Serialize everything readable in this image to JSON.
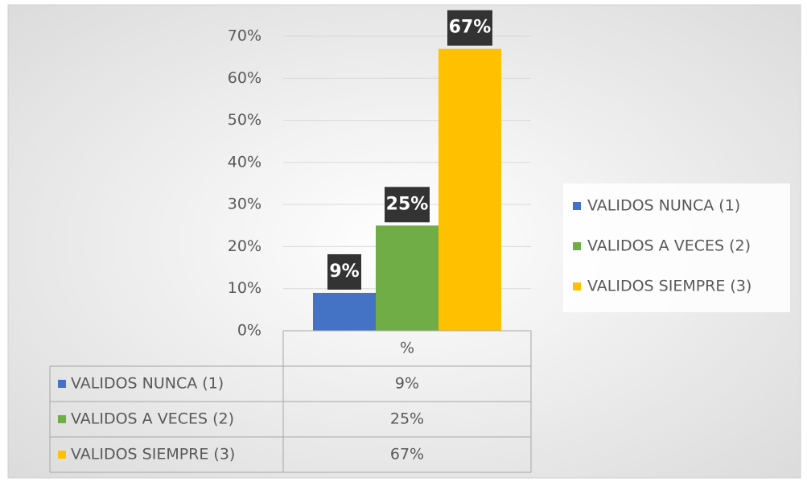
{
  "chart_data": {
    "type": "bar",
    "categories": [
      "%"
    ],
    "series": [
      {
        "name": "VALIDOS  NUNCA (1)",
        "color": "#4472c4",
        "values": [
          9
        ],
        "value_labels": [
          "9%"
        ]
      },
      {
        "name": "VALIDOS  A VECES (2)",
        "color": "#70ad47",
        "values": [
          25
        ],
        "value_labels": [
          "25%"
        ]
      },
      {
        "name": "VALIDOS  SIEMPRE (3)",
        "color": "#ffc000",
        "values": [
          67
        ],
        "value_labels": [
          "67%"
        ]
      }
    ],
    "ylim": [
      0,
      70
    ],
    "yticks": [
      {
        "value": 0,
        "label": "0%"
      },
      {
        "value": 10,
        "label": "10%"
      },
      {
        "value": 20,
        "label": "20%"
      },
      {
        "value": 30,
        "label": "30%"
      },
      {
        "value": 40,
        "label": "40%"
      },
      {
        "value": 50,
        "label": "50%"
      },
      {
        "value": 60,
        "label": "60%"
      },
      {
        "value": 70,
        "label": "70%"
      }
    ],
    "grid": true,
    "legend": "right",
    "data_table": true
  }
}
